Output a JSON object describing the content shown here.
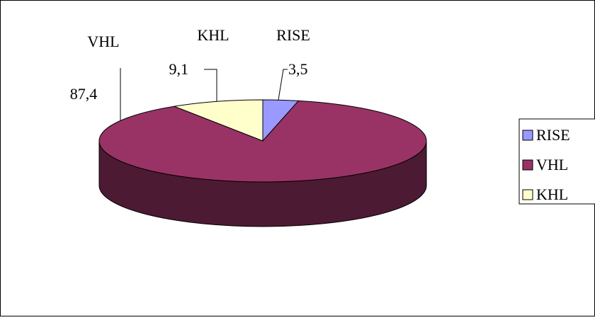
{
  "chart_data": {
    "type": "pie",
    "title": "",
    "categories": [
      "RISE",
      "VHL",
      "KHL"
    ],
    "values": [
      3.5,
      87.4,
      9.1
    ],
    "value_labels": [
      "3,5",
      "87,4",
      "9,1"
    ],
    "colors": [
      "#9999FF",
      "#993366",
      "#FFFFCC"
    ],
    "side_colors": [
      "#4C4C80",
      "#4D1A33",
      "#808066"
    ],
    "three_d": true,
    "legend": {
      "position": "right",
      "entries": [
        "RISE",
        "VHL",
        "KHL"
      ]
    }
  }
}
